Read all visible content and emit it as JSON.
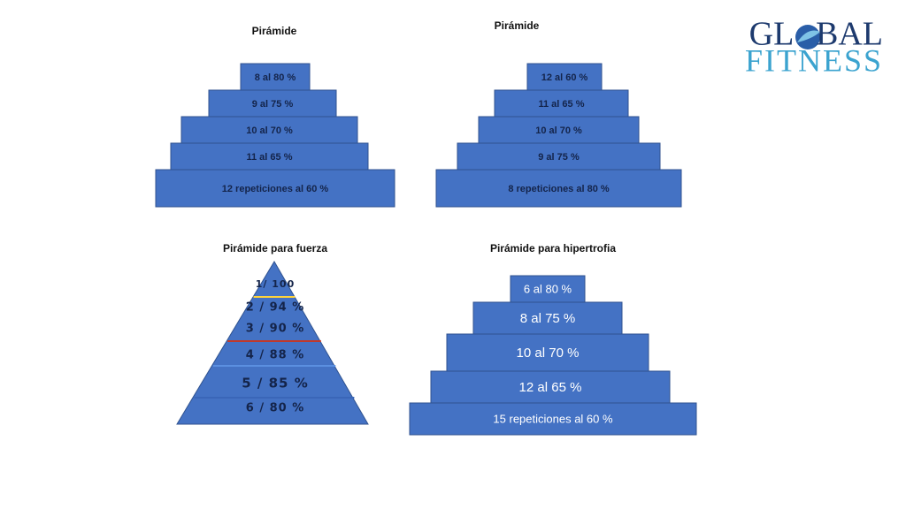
{
  "logo": {
    "line1a": "GL",
    "line1b": "BAL",
    "line2": "FITNESS"
  },
  "pyramids": [
    {
      "title": "Pirámide",
      "levels": [
        "8 al 80 %",
        "9 al 75 %",
        "10 al 70 %",
        "11 al 65 %",
        "12 repeticiones al 60 %"
      ]
    },
    {
      "title": "Pirámide",
      "levels": [
        "12 al 60 %",
        "11 al 65 %",
        "10 al 70 %",
        "9 al 75 %",
        "8 repeticiones al 80 %"
      ]
    },
    {
      "title": "Pirámide  para fuerza",
      "levels": [
        "1/ 100",
        "2 / 94 %",
        "3 / 90 %",
        "4 / 88 %",
        "5 / 85 %",
        "6 / 80 %"
      ]
    },
    {
      "title": "Pirámide para hipertrofia",
      "levels": [
        "6 al 80 %",
        "8 al 75 %",
        "10 al 70 %",
        "12 al 65 %",
        "15 repeticiones al 60 %"
      ]
    }
  ]
}
